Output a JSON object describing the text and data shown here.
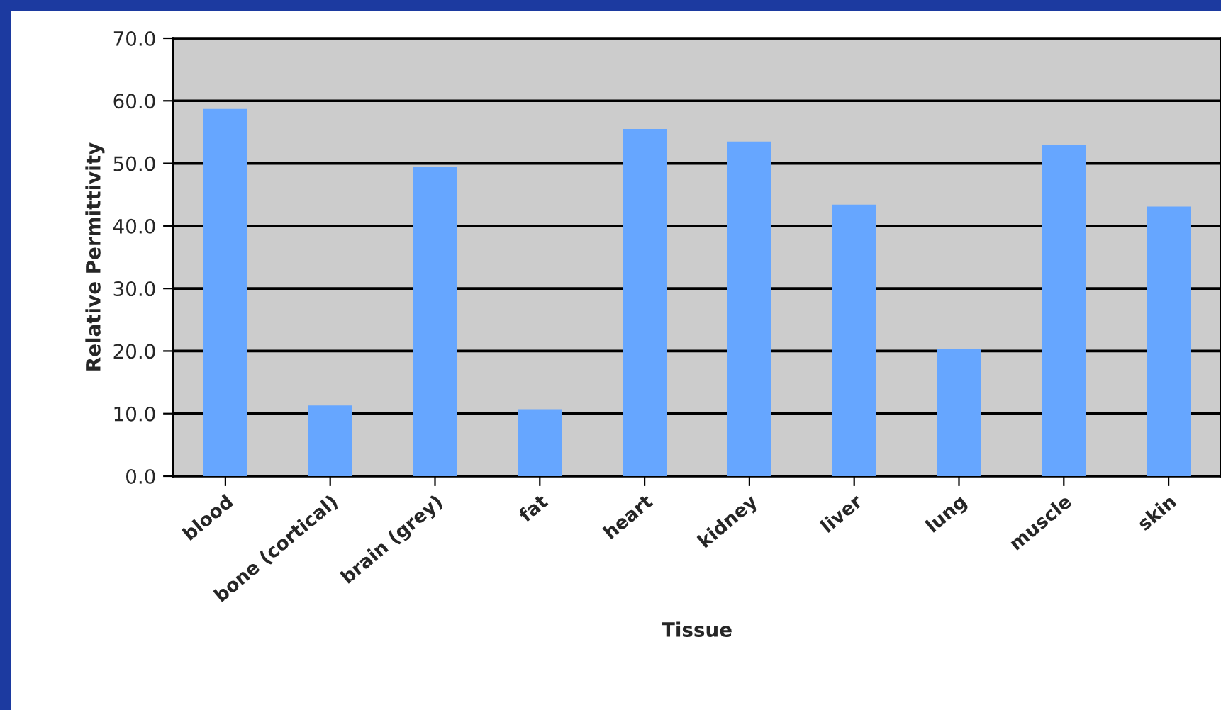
{
  "chart_data": {
    "type": "bar",
    "xlabel": "Tissue",
    "ylabel": "Relative Permittivity",
    "categories": [
      "blood",
      "bone (cortical)",
      "brain (grey)",
      "fat",
      "heart",
      "kidney",
      "liver",
      "lung",
      "muscle",
      "skin"
    ],
    "values": [
      58.7,
      11.3,
      49.4,
      10.7,
      55.5,
      53.5,
      43.4,
      20.4,
      53.0,
      43.1
    ],
    "color": "#66a6ff",
    "ylim": [
      0,
      70
    ],
    "yticks": [
      {
        "value": 0,
        "label": "0.0"
      },
      {
        "value": 10,
        "label": "10.0"
      },
      {
        "value": 20,
        "label": "20.0"
      },
      {
        "value": 30,
        "label": "30.0"
      },
      {
        "value": 40,
        "label": "40.0"
      },
      {
        "value": 50,
        "label": "50.0"
      },
      {
        "value": 60,
        "label": "60.0"
      },
      {
        "value": 70,
        "label": "70.0"
      }
    ],
    "grid": "y",
    "legend": false
  }
}
